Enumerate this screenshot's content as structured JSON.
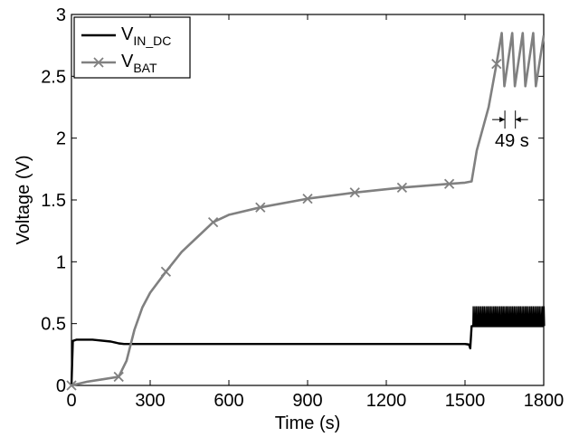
{
  "chart_data": {
    "type": "line",
    "title": "",
    "xlabel": "Time (s)",
    "ylabel": "Voltage (V)",
    "xlim": [
      0,
      1800
    ],
    "ylim": [
      0,
      3
    ],
    "x_ticks": [
      0,
      300,
      600,
      900,
      1200,
      1500,
      1800
    ],
    "y_ticks": [
      0,
      0.5,
      1,
      1.5,
      2,
      2.5,
      3
    ],
    "x_tick_labels": [
      "0",
      "300",
      "600",
      "900",
      "1200",
      "1500",
      "1800"
    ],
    "y_tick_labels": [
      "0",
      "0.5",
      "1",
      "1.5",
      "2",
      "2.5",
      "3"
    ],
    "grid": false,
    "legend_position": "top-left",
    "series": [
      {
        "name": "V_IN_DC",
        "legend_main": "V",
        "legend_sub": "IN_DC",
        "color": "#000000",
        "marker": "none",
        "points": [
          [
            0,
            0.0
          ],
          [
            5,
            0.36
          ],
          [
            20,
            0.37
          ],
          [
            80,
            0.37
          ],
          [
            150,
            0.355
          ],
          [
            180,
            0.34
          ],
          [
            200,
            0.335
          ],
          [
            400,
            0.335
          ],
          [
            800,
            0.335
          ],
          [
            1200,
            0.335
          ],
          [
            1500,
            0.335
          ],
          [
            1515,
            0.33
          ],
          [
            1520,
            0.3
          ],
          [
            1525,
            0.48
          ],
          [
            1800,
            0.48
          ]
        ],
        "oscillation": {
          "x_start": 1530,
          "x_end": 1800,
          "low": 0.48,
          "high": 0.64
        }
      },
      {
        "name": "V_BAT",
        "legend_main": "V",
        "legend_sub": "BAT",
        "color": "#808080",
        "marker": "x",
        "points": [
          [
            0,
            0.0
          ],
          [
            60,
            0.03
          ],
          [
            120,
            0.05
          ],
          [
            180,
            0.07
          ],
          [
            210,
            0.2
          ],
          [
            240,
            0.45
          ],
          [
            270,
            0.63
          ],
          [
            300,
            0.75
          ],
          [
            360,
            0.92
          ],
          [
            420,
            1.08
          ],
          [
            480,
            1.2
          ],
          [
            540,
            1.32
          ],
          [
            600,
            1.38
          ],
          [
            720,
            1.44
          ],
          [
            900,
            1.51
          ],
          [
            1080,
            1.56
          ],
          [
            1260,
            1.6
          ],
          [
            1440,
            1.63
          ],
          [
            1500,
            1.64
          ],
          [
            1525,
            1.65
          ],
          [
            1545,
            1.9
          ],
          [
            1590,
            2.25
          ],
          [
            1620,
            2.6
          ],
          [
            1640,
            2.85
          ],
          [
            1650,
            2.42
          ],
          [
            1680,
            2.85
          ],
          [
            1690,
            2.42
          ],
          [
            1720,
            2.85
          ],
          [
            1730,
            2.42
          ],
          [
            1760,
            2.85
          ],
          [
            1770,
            2.42
          ],
          [
            1800,
            2.83
          ]
        ],
        "marker_x": [
          0,
          180,
          360,
          540,
          720,
          900,
          1080,
          1260,
          1440,
          1620
        ]
      }
    ],
    "annotations": [
      {
        "text": "49 s",
        "arrow_from_x": 1652,
        "arrow_to_x": 1692,
        "y": 2.15
      }
    ]
  }
}
